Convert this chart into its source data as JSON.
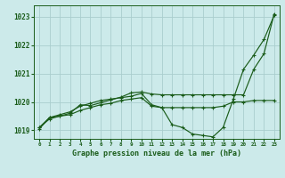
{
  "bg_color": "#cceaea",
  "grid_color": "#aacece",
  "line_color": "#1a5c1a",
  "title": "Graphe pression niveau de la mer (hPa)",
  "ylim": [
    1018.7,
    1023.4
  ],
  "yticks": [
    1019,
    1020,
    1021,
    1022,
    1023
  ],
  "xlim": [
    -0.5,
    23.5
  ],
  "xticks": [
    0,
    1,
    2,
    3,
    4,
    5,
    6,
    7,
    8,
    9,
    10,
    11,
    12,
    13,
    14,
    15,
    16,
    17,
    18,
    19,
    20,
    21,
    22,
    23
  ],
  "line1_x": [
    0,
    1,
    2,
    3,
    4,
    5,
    6,
    7,
    8,
    9,
    10,
    11,
    12,
    13,
    14,
    15,
    16,
    17,
    18,
    19,
    20,
    21,
    22,
    23
  ],
  "line1_y": [
    1019.1,
    1019.4,
    1019.5,
    1019.55,
    1019.7,
    1019.8,
    1019.9,
    1019.95,
    1020.05,
    1020.1,
    1020.15,
    1019.85,
    1019.8,
    1019.8,
    1019.8,
    1019.8,
    1019.8,
    1019.8,
    1019.85,
    1020.0,
    1020.0,
    1020.05,
    1020.05,
    1020.05
  ],
  "line2_x": [
    0,
    1,
    2,
    3,
    4,
    5,
    6,
    7,
    8,
    9,
    10,
    11,
    12,
    13,
    14,
    15,
    16,
    17,
    18,
    19,
    20,
    21,
    22,
    23
  ],
  "line2_y": [
    1019.05,
    1019.45,
    1019.55,
    1019.65,
    1019.85,
    1019.95,
    1020.05,
    1020.1,
    1020.15,
    1020.2,
    1020.3,
    1019.9,
    1019.8,
    1019.2,
    1019.1,
    1018.87,
    1018.82,
    1018.77,
    1019.1,
    1020.1,
    1021.15,
    1021.65,
    1022.2,
    1023.05
  ],
  "line3_x": [
    0,
    1,
    2,
    3,
    4,
    5,
    6,
    7,
    8,
    9,
    10,
    11,
    12,
    13,
    14,
    15,
    16,
    17,
    18,
    19,
    20,
    21,
    22,
    23
  ],
  "line3_y": [
    1019.1,
    1019.45,
    1019.5,
    1019.6,
    1019.9,
    1019.87,
    1019.97,
    1020.07,
    1020.17,
    1020.32,
    1020.35,
    1020.28,
    1020.25,
    1020.25,
    1020.25,
    1020.25,
    1020.25,
    1020.25,
    1020.25,
    1020.25,
    1020.25,
    1021.15,
    1021.7,
    1023.1
  ]
}
